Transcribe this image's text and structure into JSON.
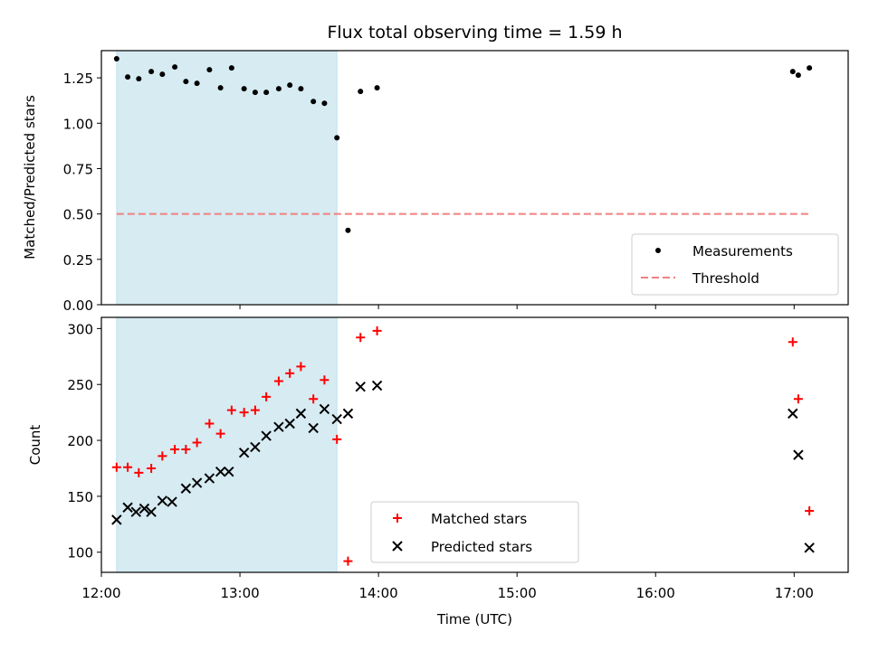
{
  "chart_data": [
    {
      "type": "scatter",
      "title": "Flux total observing time = 1.59 h",
      "ylabel": "Matched/Predicted stars",
      "xlabel": "",
      "xlim": [
        12.0,
        17.39
      ],
      "ylim": [
        0.0,
        1.4
      ],
      "yticks": [
        0.0,
        0.25,
        0.5,
        0.75,
        1.0,
        1.25
      ],
      "ytick_labels": [
        "0.00",
        "0.25",
        "0.50",
        "0.75",
        "1.00",
        "1.25"
      ],
      "xticks": [
        13,
        14,
        15,
        16,
        17
      ],
      "shaded_span": [
        12.11,
        13.7
      ],
      "shade_color": "#add8e6",
      "legend_position": "lower right",
      "series": [
        {
          "name": "Measurements",
          "marker": "dot",
          "color": "#000000",
          "x": [
            12.11,
            12.19,
            12.27,
            12.36,
            12.44,
            12.53,
            12.61,
            12.69,
            12.78,
            12.86,
            12.94,
            13.03,
            13.11,
            13.19,
            13.28,
            13.36,
            13.44,
            13.53,
            13.61,
            13.7,
            13.78,
            13.87,
            13.99,
            16.99,
            17.03,
            17.11
          ],
          "y": [
            1.355,
            1.255,
            1.245,
            1.285,
            1.27,
            1.31,
            1.23,
            1.22,
            1.295,
            1.195,
            1.305,
            1.19,
            1.17,
            1.17,
            1.19,
            1.21,
            1.19,
            1.12,
            1.11,
            0.92,
            0.41,
            1.175,
            1.195,
            1.285,
            1.265,
            1.305
          ]
        },
        {
          "name": "Threshold",
          "marker": "dashed-line",
          "color": "#f08080",
          "x": [
            12.11,
            17.11
          ],
          "y": [
            0.5,
            0.5
          ]
        }
      ]
    },
    {
      "type": "scatter",
      "title": "",
      "ylabel": "Count",
      "xlabel": "Time (UTC)",
      "xlim": [
        12.0,
        17.39
      ],
      "ylim": [
        82,
        310
      ],
      "yticks": [
        100,
        150,
        200,
        250,
        300
      ],
      "ytick_labels": [
        "100",
        "150",
        "200",
        "250",
        "300"
      ],
      "xticks": [
        12,
        13,
        14,
        15,
        16,
        17
      ],
      "xtick_labels": [
        "12:00",
        "13:00",
        "14:00",
        "15:00",
        "16:00",
        "17:00"
      ],
      "shaded_span": [
        12.11,
        13.7
      ],
      "shade_color": "#add8e6",
      "legend_position": "lower center",
      "series": [
        {
          "name": "Matched stars",
          "marker": "plus",
          "color": "#ff0000",
          "x": [
            12.11,
            12.19,
            12.27,
            12.36,
            12.44,
            12.53,
            12.61,
            12.69,
            12.78,
            12.86,
            12.94,
            13.03,
            13.11,
            13.19,
            13.28,
            13.36,
            13.44,
            13.53,
            13.61,
            13.7,
            13.78,
            13.87,
            13.99,
            16.99,
            17.03,
            17.11
          ],
          "y": [
            176,
            176,
            171,
            175,
            186,
            192,
            192,
            198,
            215,
            206,
            227,
            225,
            227,
            239,
            253,
            260,
            266,
            237,
            254,
            201,
            92,
            292,
            298,
            288,
            237,
            137
          ]
        },
        {
          "name": "Predicted stars",
          "marker": "x",
          "color": "#000000",
          "x": [
            12.11,
            12.19,
            12.25,
            12.31,
            12.36,
            12.44,
            12.51,
            12.61,
            12.69,
            12.78,
            12.86,
            12.92,
            13.03,
            13.11,
            13.19,
            13.28,
            13.36,
            13.44,
            13.53,
            13.61,
            13.7,
            13.78,
            13.87,
            13.99,
            16.99,
            17.03,
            17.11
          ],
          "y": [
            129,
            140,
            136,
            139,
            136,
            146,
            145,
            157,
            162,
            166,
            172,
            172,
            189,
            194,
            204,
            212,
            215,
            224,
            211,
            228,
            219,
            224,
            248,
            249,
            224,
            187,
            104
          ]
        }
      ]
    }
  ]
}
